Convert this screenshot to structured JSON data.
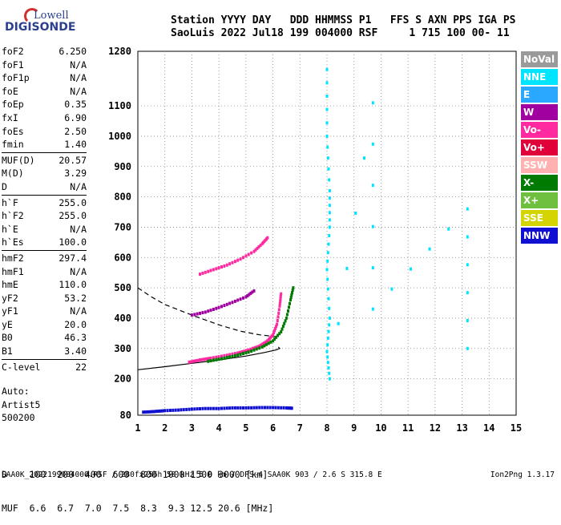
{
  "logo": {
    "line1": "Lowell",
    "line2": "DIGISONDE"
  },
  "header": {
    "line1": "Station YYYY DAY   DDD HHMMSS P1   FFS S AXN PPS IGA PS",
    "line2": "SaoLuis 2022 Jul18 199 004000 RSF     1 715 100 00- 11"
  },
  "params": [
    {
      "k": "foF2",
      "v": "6.250"
    },
    {
      "k": "foF1",
      "v": "N/A"
    },
    {
      "k": "foF1p",
      "v": "N/A"
    },
    {
      "k": "foE",
      "v": "N/A"
    },
    {
      "k": "foEp",
      "v": "0.35"
    },
    {
      "k": "fxI",
      "v": "6.90"
    },
    {
      "k": "foEs",
      "v": "2.50"
    },
    {
      "k": "fmin",
      "v": "1.40"
    },
    {
      "k": "MUF(D)",
      "v": "20.57"
    },
    {
      "k": "M(D)",
      "v": "3.29"
    },
    {
      "k": "D",
      "v": "N/A"
    },
    {
      "k": "h`F",
      "v": "255.0"
    },
    {
      "k": "h`F2",
      "v": "255.0"
    },
    {
      "k": "h`E",
      "v": "N/A"
    },
    {
      "k": "h`Es",
      "v": "100.0"
    },
    {
      "k": "hmF2",
      "v": "297.4"
    },
    {
      "k": "hmF1",
      "v": "N/A"
    },
    {
      "k": "hmE",
      "v": "110.0"
    },
    {
      "k": "yF2",
      "v": "53.2"
    },
    {
      "k": "yF1",
      "v": "N/A"
    },
    {
      "k": "yE",
      "v": "20.0"
    },
    {
      "k": "B0",
      "v": "46.3"
    },
    {
      "k": "B1",
      "v": "3.40"
    },
    {
      "k": "C-level",
      "v": "22"
    }
  ],
  "auto": {
    "l1": "Auto:",
    "l2": "Artist5",
    "l3": "500200"
  },
  "dmuf": {
    "d_line": "D    100  200  400  600  800 1000 1500 3000 [km]",
    "muf_line": "MUF  6.6  6.7  7.0  7.5  8.3  9.3 12.5 20.6 [MHz]"
  },
  "footer": {
    "left": "SAA0K_2022199004000.RSF / 280fx256h 50 kHz 5.0 km / DPS-4 SAA0K 903 / 2.6 S 315.8 E",
    "right": "Ion2Png 1.3.17"
  },
  "legend": [
    {
      "label": "NoVal",
      "color": "#9a9a9a"
    },
    {
      "label": "NNE",
      "color": "#00e5ff"
    },
    {
      "label": "E",
      "color": "#2aa8ff"
    },
    {
      "label": "W",
      "color": "#a000a0"
    },
    {
      "label": "Vo-",
      "color": "#ff2aa0"
    },
    {
      "label": "Vo+",
      "color": "#e0003a"
    },
    {
      "label": "SSW",
      "color": "#ffb0b0"
    },
    {
      "label": "X-",
      "color": "#007a00"
    },
    {
      "label": "X+",
      "color": "#70c040"
    },
    {
      "label": "SSE",
      "color": "#d4d400"
    },
    {
      "label": "NNW",
      "color": "#1010d0"
    }
  ],
  "chart_data": {
    "type": "scatter",
    "xlim": [
      1,
      15
    ],
    "ylim": [
      80,
      1280
    ],
    "x_ticks": [
      1,
      2,
      3,
      4,
      5,
      6,
      7,
      8,
      9,
      10,
      11,
      12,
      13,
      14,
      15
    ],
    "y_ticks": [
      80,
      200,
      300,
      400,
      500,
      600,
      700,
      800,
      900,
      1000,
      1100,
      1280
    ],
    "grid": true,
    "traces": [
      {
        "name": "E-layer echoes",
        "color": "#1010d0",
        "points": [
          [
            1.2,
            90
          ],
          [
            1.6,
            92
          ],
          [
            2.0,
            95
          ],
          [
            2.5,
            97
          ],
          [
            3.0,
            100
          ],
          [
            3.5,
            102
          ],
          [
            4.0,
            102
          ],
          [
            4.5,
            104
          ],
          [
            5.0,
            104
          ],
          [
            5.5,
            105
          ],
          [
            6.0,
            105
          ],
          [
            6.5,
            104
          ],
          [
            6.7,
            103
          ]
        ]
      },
      {
        "name": "F2 ordinary",
        "color": "#ff2aa0",
        "points": [
          [
            2.9,
            255
          ],
          [
            3.3,
            262
          ],
          [
            3.7,
            268
          ],
          [
            4.2,
            276
          ],
          [
            4.7,
            285
          ],
          [
            5.1,
            295
          ],
          [
            5.5,
            308
          ],
          [
            5.8,
            325
          ],
          [
            6.0,
            345
          ],
          [
            6.15,
            380
          ],
          [
            6.25,
            440
          ],
          [
            6.3,
            480
          ]
        ]
      },
      {
        "name": "F2 extraordinary",
        "color": "#007a00",
        "points": [
          [
            3.6,
            258
          ],
          [
            4.1,
            266
          ],
          [
            4.6,
            276
          ],
          [
            5.1,
            288
          ],
          [
            5.6,
            305
          ],
          [
            6.0,
            325
          ],
          [
            6.3,
            355
          ],
          [
            6.5,
            400
          ],
          [
            6.65,
            460
          ],
          [
            6.75,
            500
          ]
        ]
      },
      {
        "name": "F2 second hop",
        "color": "#a000a0",
        "points": [
          [
            3.0,
            410
          ],
          [
            3.5,
            420
          ],
          [
            4.0,
            435
          ],
          [
            4.5,
            452
          ],
          [
            5.0,
            470
          ],
          [
            5.3,
            490
          ]
        ]
      },
      {
        "name": "F2 third hop",
        "color": "#ff2aa0",
        "points": [
          [
            3.3,
            545
          ],
          [
            3.8,
            560
          ],
          [
            4.3,
            575
          ],
          [
            4.8,
            595
          ],
          [
            5.3,
            620
          ],
          [
            5.6,
            645
          ],
          [
            5.8,
            665
          ]
        ]
      },
      {
        "name": "Spread echoes",
        "color": "#00e5ff",
        "points": [
          [
            8.0,
            1220
          ],
          [
            8.0,
            1000
          ],
          [
            8.1,
            820
          ],
          [
            8.1,
            700
          ],
          [
            8.0,
            560
          ],
          [
            8.1,
            400
          ],
          [
            8.0,
            290
          ],
          [
            8.1,
            200
          ],
          [
            9.7,
            1110
          ],
          [
            9.7,
            430
          ],
          [
            13.2,
            760
          ],
          [
            13.2,
            300
          ]
        ]
      }
    ],
    "profile_solid": [
      [
        1,
        230
      ],
      [
        2,
        240
      ],
      [
        3,
        251
      ],
      [
        4,
        262
      ],
      [
        5,
        275
      ],
      [
        5.7,
        287
      ],
      [
        6.1,
        295
      ],
      [
        6.25,
        300
      ],
      [
        6.2,
        305
      ]
    ],
    "profile_dashed": [
      [
        1,
        500
      ],
      [
        1.5,
        470
      ],
      [
        2,
        445
      ],
      [
        3,
        410
      ],
      [
        4,
        378
      ],
      [
        4.8,
        357
      ],
      [
        5.5,
        345
      ],
      [
        6.2,
        338
      ]
    ]
  }
}
